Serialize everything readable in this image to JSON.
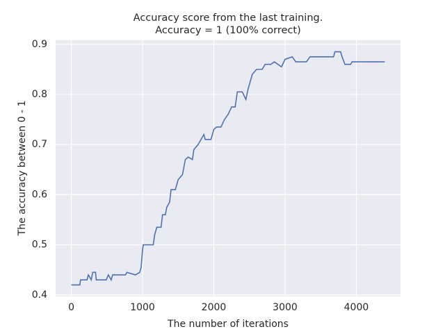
{
  "chart_data": {
    "type": "line",
    "title": "Accuracy score from the last training.",
    "subtitle": "Accuracy = 1 (100% correct)",
    "xlabel": "The number of iterations",
    "ylabel": "The accuracy between 0 - 1",
    "x": [
      0,
      120,
      130,
      220,
      240,
      280,
      300,
      340,
      350,
      490,
      520,
      560,
      580,
      760,
      780,
      900,
      960,
      980,
      1000,
      1010,
      1150,
      1170,
      1200,
      1260,
      1280,
      1320,
      1340,
      1380,
      1400,
      1460,
      1500,
      1560,
      1600,
      1640,
      1700,
      1720,
      1780,
      1820,
      1860,
      1880,
      1960,
      2000,
      2040,
      2100,
      2150,
      2200,
      2250,
      2300,
      2330,
      2400,
      2450,
      2480,
      2540,
      2600,
      2680,
      2720,
      2800,
      2850,
      2950,
      3000,
      3100,
      3150,
      3300,
      3350,
      3680,
      3700,
      3780,
      3800,
      3840,
      3920,
      3940,
      4400
    ],
    "series": [
      {
        "name": "accuracy",
        "color": "#4c72b0",
        "values": [
          0.42,
          0.42,
          0.43,
          0.43,
          0.44,
          0.43,
          0.445,
          0.445,
          0.43,
          0.43,
          0.44,
          0.43,
          0.44,
          0.44,
          0.445,
          0.44,
          0.445,
          0.455,
          0.49,
          0.5,
          0.5,
          0.52,
          0.535,
          0.535,
          0.56,
          0.56,
          0.575,
          0.585,
          0.61,
          0.61,
          0.63,
          0.64,
          0.67,
          0.675,
          0.67,
          0.69,
          0.7,
          0.71,
          0.72,
          0.71,
          0.71,
          0.73,
          0.735,
          0.735,
          0.75,
          0.76,
          0.775,
          0.775,
          0.805,
          0.805,
          0.79,
          0.81,
          0.84,
          0.85,
          0.85,
          0.86,
          0.86,
          0.865,
          0.855,
          0.87,
          0.875,
          0.865,
          0.865,
          0.875,
          0.875,
          0.885,
          0.885,
          0.875,
          0.86,
          0.86,
          0.865,
          0.865
        ]
      }
    ],
    "xlim": [
      -220,
      4620
    ],
    "xticks": [
      0,
      1000,
      2000,
      3000,
      4000
    ],
    "ylim": [
      0.397,
      0.908
    ],
    "yticks": [
      0.4,
      0.5,
      0.6,
      0.7,
      0.8,
      0.9
    ],
    "grid": true,
    "background": "#eaeaf2"
  }
}
